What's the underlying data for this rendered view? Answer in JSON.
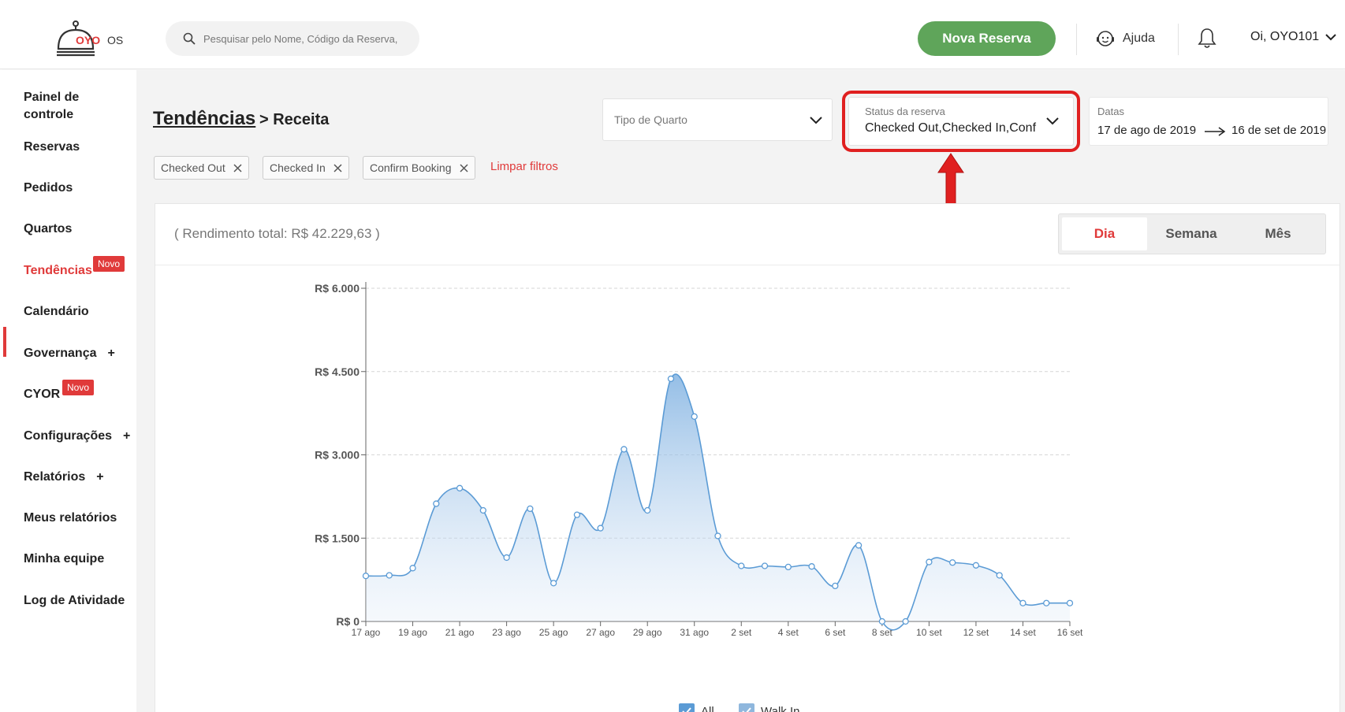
{
  "header": {
    "logo_brand": "OYO",
    "logo_suffix": "OS",
    "search_placeholder": "Pesquisar pelo Nome, Código da Reserva,",
    "new_booking_label": "Nova Reserva",
    "help_label": "Ajuda",
    "user_label": "Oi, OYO101"
  },
  "sidebar": {
    "items": [
      {
        "label": "Painel de controle"
      },
      {
        "label": "Reservas"
      },
      {
        "label": "Pedidos"
      },
      {
        "label": "Quartos"
      },
      {
        "label": "Tendências",
        "badge": "Novo"
      },
      {
        "label": "Calendário"
      },
      {
        "label": "Governança"
      },
      {
        "label": "CYOR",
        "badge": "Novo"
      },
      {
        "label": "Configurações"
      },
      {
        "label": "Relatórios"
      },
      {
        "label": "Meus relatórios"
      },
      {
        "label": "Minha equipe"
      },
      {
        "label": "Log de Atividade"
      }
    ],
    "expand_symbol": "+"
  },
  "main": {
    "title": "Tendências",
    "subtitle": "> Receita",
    "room_type": {
      "placeholder": "Tipo de Quarto"
    },
    "booking_status": {
      "label": "Status da reserva",
      "value": "Checked Out,Checked In,Conf"
    },
    "dates": {
      "label": "Datas",
      "from": "17 de ago de 2019",
      "to": "16 de set de 2019"
    },
    "filters": [
      "Checked Out",
      "Checked In",
      "Confirm Booking"
    ],
    "clear_filters": "Limpar filtros",
    "total_text": "( Rendimento total: R$ 42.229,63 )",
    "period_tabs": [
      "Dia",
      "Semana",
      "Mês"
    ],
    "active_period": "Dia"
  },
  "colors": {
    "accent": "#e03a3a",
    "primary_button": "#5fa55a",
    "series": "#5b9bd5"
  },
  "chart_data": {
    "type": "area",
    "title": "",
    "xlabel": "",
    "ylabel": "",
    "ylim": [
      0,
      6000
    ],
    "y_ticks": [
      "R$ 0",
      "R$ 1.500",
      "R$ 3.000",
      "R$ 4.500",
      "R$ 6.000"
    ],
    "y_tick_values": [
      0,
      1500,
      3000,
      4500,
      6000
    ],
    "x_ticks": [
      "17 ago",
      "19 ago",
      "21 ago",
      "23 ago",
      "25 ago",
      "27 ago",
      "29 ago",
      "31 ago",
      "2 set",
      "4 set",
      "6 set",
      "8 set",
      "10 set",
      "12 set",
      "14 set",
      "16 set"
    ],
    "x": [
      "17 ago",
      "18 ago",
      "19 ago",
      "20 ago",
      "21 ago",
      "22 ago",
      "23 ago",
      "24 ago",
      "25 ago",
      "26 ago",
      "27 ago",
      "28 ago",
      "29 ago",
      "30 ago",
      "31 ago",
      "1 set",
      "2 set",
      "3 set",
      "4 set",
      "5 set",
      "6 set",
      "7 set",
      "8 set",
      "9 set",
      "10 set",
      "11 set",
      "12 set",
      "13 set",
      "14 set",
      "15 set",
      "16 set"
    ],
    "series": [
      {
        "name": "All",
        "values": [
          820,
          830,
          960,
          2120,
          2400,
          2000,
          1150,
          2030,
          690,
          1920,
          1680,
          3100,
          2000,
          4370,
          3690,
          1540,
          1000,
          1000,
          980,
          990,
          640,
          1370,
          0,
          0,
          1070,
          1060,
          1010,
          830,
          330,
          330,
          330
        ]
      }
    ],
    "legend": [
      {
        "label": "All",
        "checked": true
      },
      {
        "label": "Walk In",
        "checked": true
      }
    ],
    "grid": true
  }
}
